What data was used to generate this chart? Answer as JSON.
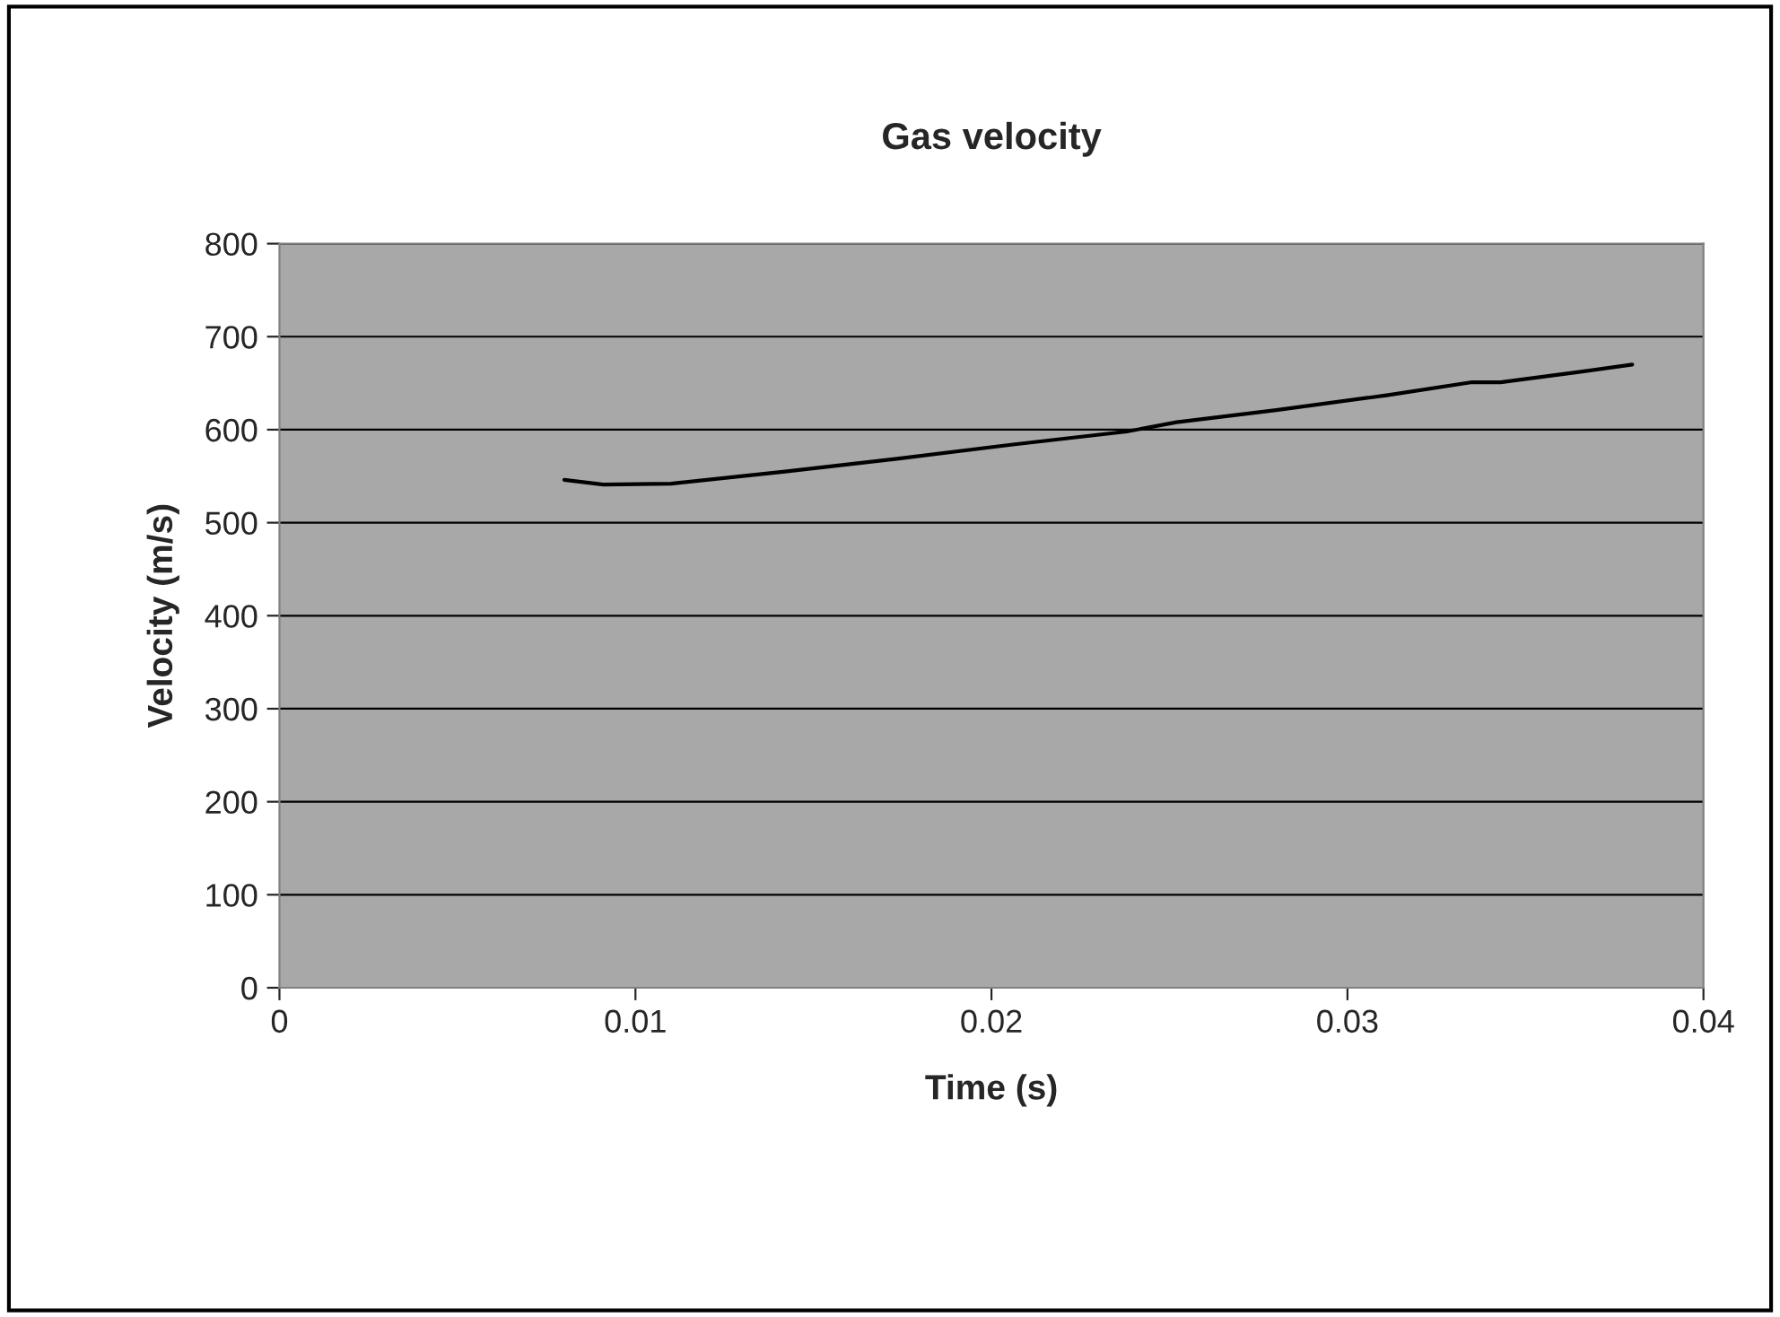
{
  "chart_data": {
    "type": "line",
    "title": "Gas velocity",
    "xlabel": "Time (s)",
    "ylabel": "Velocity (m/s)",
    "x": [
      0.008,
      0.0091,
      0.011,
      0.0142,
      0.0174,
      0.0206,
      0.0238,
      0.0252,
      0.028,
      0.0311,
      0.0335,
      0.0343,
      0.0365,
      0.038
    ],
    "series": [
      {
        "color": "#000000",
        "values": [
          546,
          541,
          542,
          555,
          569,
          584,
          598,
          608,
          621,
          637,
          651,
          651,
          662,
          670
        ]
      }
    ],
    "xlim": [
      0,
      0.04
    ],
    "xticks": [
      0,
      0.01,
      0.02,
      0.03,
      0.04
    ],
    "ylim": [
      0,
      800
    ],
    "yticks": [
      0,
      100,
      200,
      300,
      400,
      500,
      600,
      700,
      800
    ],
    "grid": "y",
    "marker": "none",
    "line_style": "solid"
  }
}
